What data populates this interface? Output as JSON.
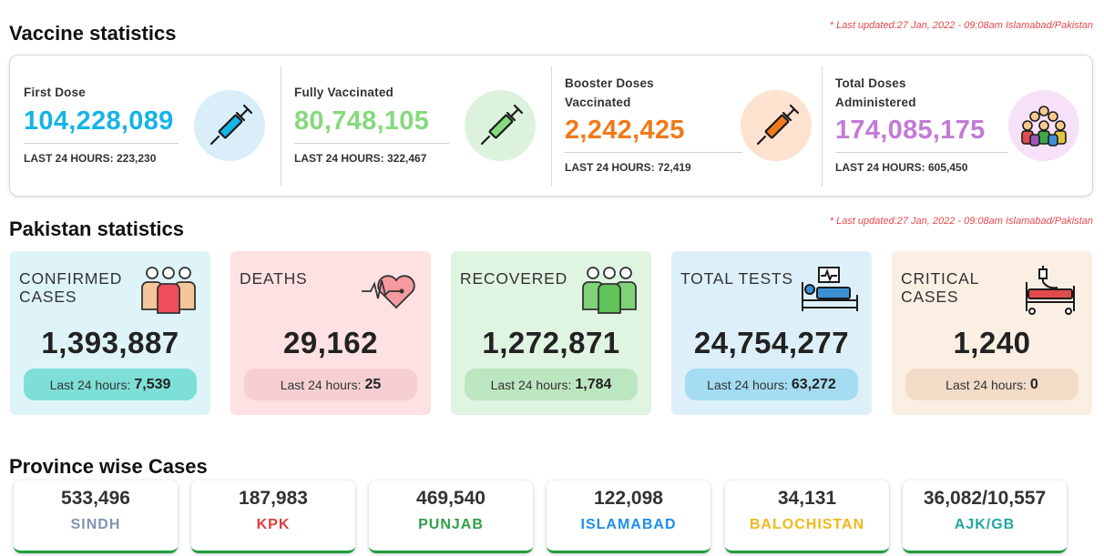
{
  "vaccine": {
    "title": "Vaccine statistics",
    "updated": "* Last updated:27 Jan, 2022 - 09:08am Islamabad/Pakistan",
    "items": [
      {
        "label1": "First Dose",
        "label2": "",
        "value": "104,228,089",
        "last": "LAST 24 HOURS: 223,230",
        "color": "#16b3e6",
        "icon": "syringe-icon"
      },
      {
        "label1": "Fully Vaccinated",
        "label2": "",
        "value": "80,748,105",
        "last": "LAST 24 HOURS: 322,467",
        "color": "#86d97d",
        "icon": "syringe-icon"
      },
      {
        "label1": "Booster Doses",
        "label2": "Vaccinated",
        "value": "2,242,425",
        "last": "LAST 24 HOURS: 72,419",
        "color": "#f07a1a",
        "icon": "syringe-icon"
      },
      {
        "label1": "Total Doses",
        "label2": "Administered",
        "value": "174,085,175",
        "last": "LAST 24 HOURS: 605,450",
        "color": "#c27bd6",
        "icon": "crowd-icon"
      }
    ]
  },
  "pakistan": {
    "title": "Pakistan statistics",
    "updated": "* Last updated:27 Jan, 2022 - 09:08am Islamabad/Pakistan",
    "cards": [
      {
        "label": "CONFIRMED CASES",
        "value": "1,393,887",
        "pill_text": "Last 24 hours:",
        "pill_value": "7,539",
        "bg": "#dff4f8",
        "pill_bg": "#7ddfd6",
        "icon": "people-icon"
      },
      {
        "label": "DEATHS",
        "value": "29,162",
        "pill_text": "Last 24 hours:",
        "pill_value": "25",
        "bg": "#fde1e3",
        "pill_bg": "#f6cfd2",
        "icon": "heartbeat-icon"
      },
      {
        "label": "RECOVERED",
        "value": "1,272,871",
        "pill_text": "Last 24 hours:",
        "pill_value": "1,784",
        "bg": "#e0f4e2",
        "pill_bg": "#bce6c0",
        "icon": "recovered-people-icon"
      },
      {
        "label": "TOTAL TESTS",
        "value": "24,754,277",
        "pill_text": "Last 24 hours:",
        "pill_value": "63,272",
        "bg": "#ddf0fa",
        "pill_bg": "#a5dcf2",
        "icon": "hospital-bed-icon"
      },
      {
        "label": "CRITICAL CASES",
        "value": "1,240",
        "pill_text": "Last 24 hours:",
        "pill_value": "0",
        "bg": "#fbefe4",
        "pill_bg": "#f2dcc7",
        "icon": "icu-bed-icon"
      }
    ]
  },
  "province": {
    "title": "Province wise Cases",
    "cards": [
      {
        "value": "533,496",
        "name": "SINDH",
        "color": "#7f93b3"
      },
      {
        "value": "187,983",
        "name": "KPK",
        "color": "#e23c3c"
      },
      {
        "value": "469,540",
        "name": "PUNJAB",
        "color": "#2f9e47"
      },
      {
        "value": "122,098",
        "name": "ISLAMABAD",
        "color": "#1f8ee6"
      },
      {
        "value": "34,131",
        "name": "BALOCHISTAN",
        "color": "#f0b81a"
      },
      {
        "value": "36,082/10,557",
        "name": "AJK/GB",
        "color": "#21a6a0"
      }
    ]
  }
}
